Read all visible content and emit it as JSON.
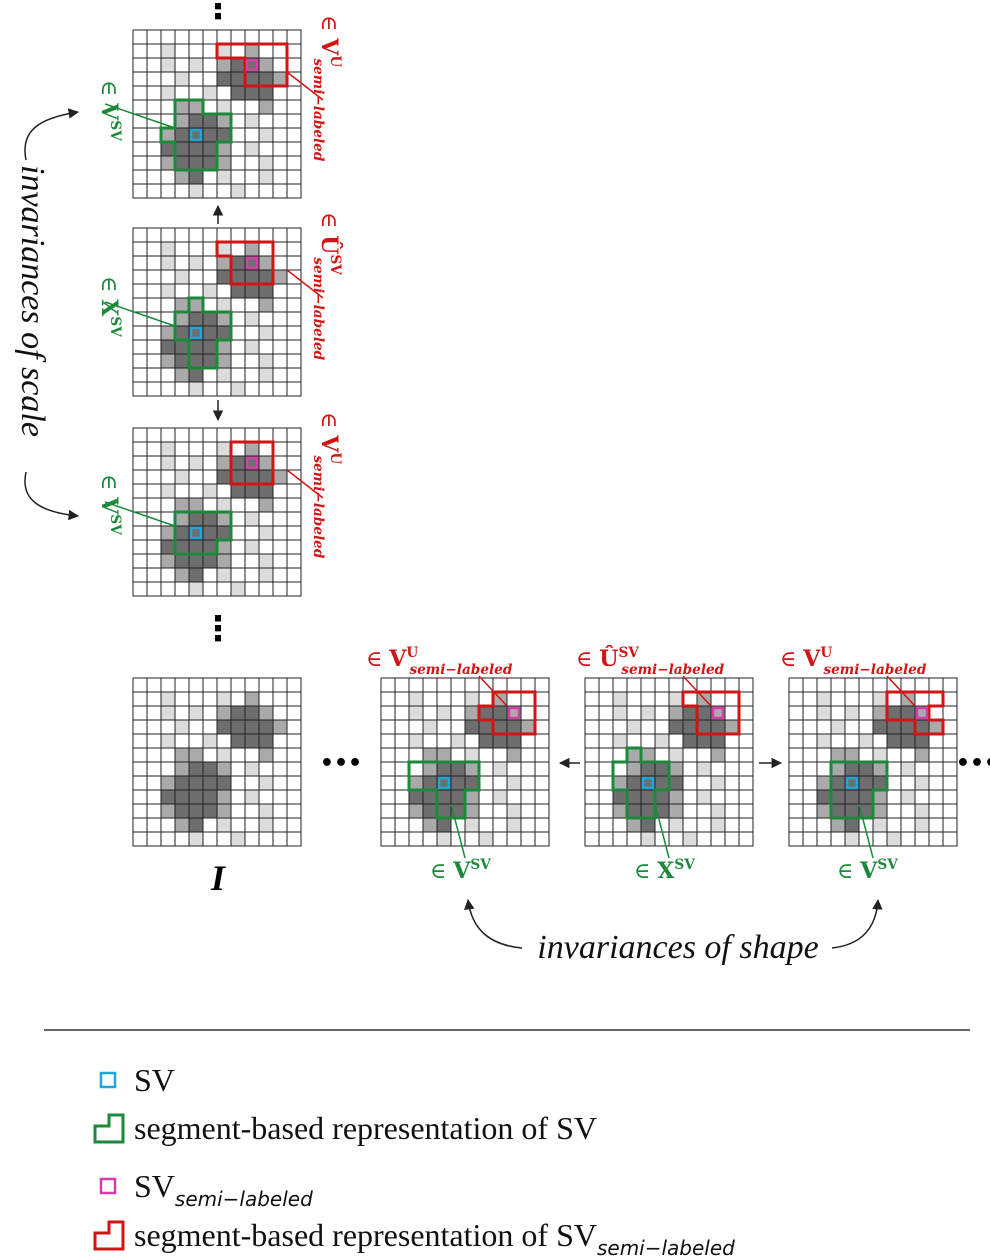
{
  "colors": {
    "green": "#1a8a3a",
    "red": "#d21414",
    "cyan": "#1ea7d6",
    "magenta": "#d63caa",
    "dark_cell": "#6e6e6e",
    "mid_cell": "#aaaaaa",
    "light_cell": "#dcdcdc"
  },
  "vertical_column": {
    "ellipsis_top": "⋮",
    "ellipsis_bottom": "⋮",
    "side_label": "invariances of scale",
    "grids": [
      {
        "green_label": "∈ V",
        "green_sup": "SV",
        "red_prefix": "∈ ",
        "red_base": "V",
        "red_sup": "U",
        "red_sub": "semi−labeled"
      },
      {
        "green_label": "∈ X",
        "green_sup": "SV",
        "red_prefix": "∈ ",
        "red_base": "Û",
        "red_sup": "SV",
        "red_sub": "semi−labeled"
      },
      {
        "green_label": "∈ V",
        "green_sup": "SV",
        "red_prefix": "∈ ",
        "red_base": "V",
        "red_sup": "U",
        "red_sub": "semi−labeled"
      }
    ]
  },
  "horizontal_row": {
    "input_label": "I",
    "ellipsis_left": "•••",
    "ellipsis_right": "•••",
    "side_label": "invariances of shape",
    "grids": [
      {
        "red_prefix": "∈ ",
        "red_base": "V",
        "red_sup": "U",
        "red_sub": "semi−labeled",
        "green_base": "∈ V",
        "green_sup": "SV"
      },
      {
        "red_prefix": "∈ ",
        "red_base": "Û",
        "red_sup": "SV",
        "red_sub": "semi−labeled",
        "green_base": "∈ X",
        "green_sup": "SV"
      },
      {
        "red_prefix": "∈ ",
        "red_base": "V",
        "red_sup": "U",
        "red_sub": "semi−labeled",
        "green_base": "∈ V",
        "green_sup": "SV"
      }
    ]
  },
  "legend": {
    "items": [
      {
        "icon": "cyan-square-icon",
        "label": "SV",
        "sub": ""
      },
      {
        "icon": "green-segment-icon",
        "label": "segment-based representation of SV",
        "sub": ""
      },
      {
        "icon": "magenta-square-icon",
        "label": "SV",
        "sub": "semi−labeled"
      },
      {
        "icon": "red-segment-icon",
        "label": "segment-based representation of SV",
        "sub": "semi−labeled"
      }
    ]
  }
}
